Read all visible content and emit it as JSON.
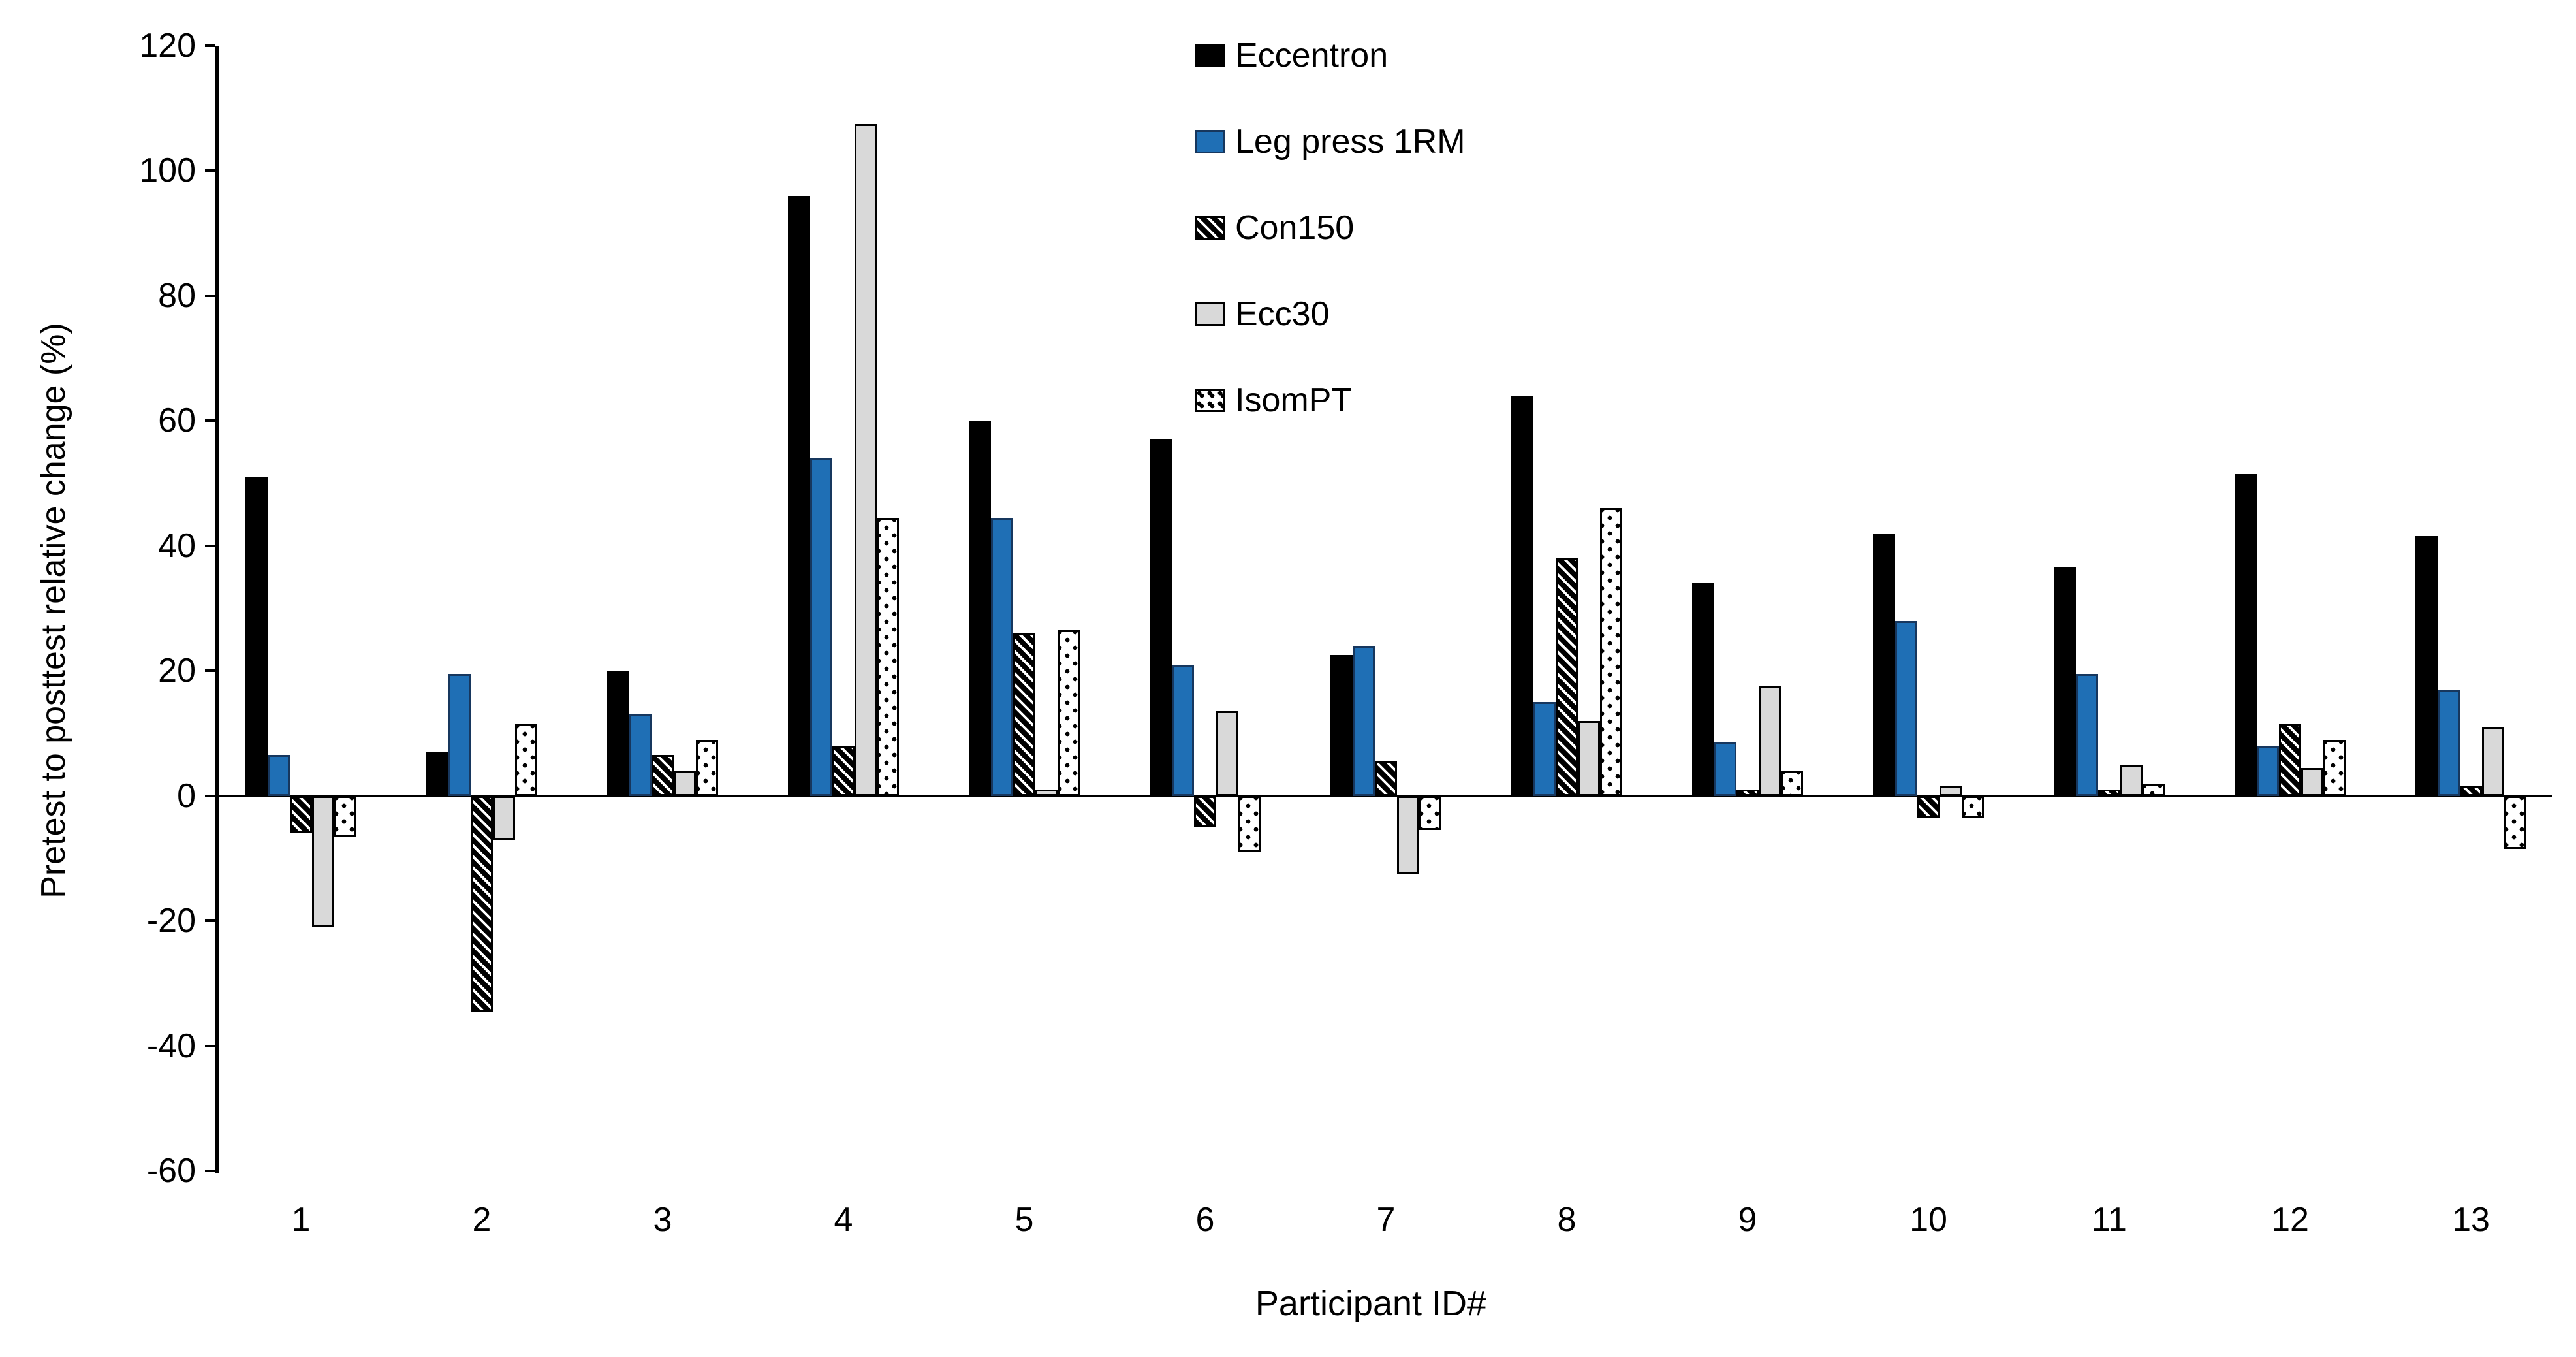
{
  "chart_data": {
    "type": "bar",
    "title": "",
    "xlabel": "Participant ID#",
    "ylabel": "Pretest to posttest relative change (%)",
    "categories": [
      "1",
      "2",
      "3",
      "4",
      "5",
      "6",
      "7",
      "8",
      "9",
      "10",
      "11",
      "12",
      "13"
    ],
    "y_ticks": [
      120,
      100,
      80,
      60,
      40,
      20,
      0,
      -20,
      -40,
      -60
    ],
    "ylim": [
      -60,
      120
    ],
    "grid": false,
    "legend_position": "top-center",
    "colors": {
      "eccentron": "#000000",
      "leg_press": "#1F6FB5",
      "leg_press_border": "#17375E",
      "ecc30": "#D9D9D9",
      "axis": "#000000"
    },
    "series": [
      {
        "name": "Eccentron",
        "pattern": "solid",
        "color": "#000000",
        "values": [
          51,
          7,
          20,
          96,
          60,
          57,
          22.5,
          64,
          34,
          42,
          36.5,
          51.5,
          41.5
        ]
      },
      {
        "name": "Leg press 1RM",
        "pattern": "solid",
        "color": "#1F6FB5",
        "values": [
          6.5,
          19.5,
          13,
          54,
          44.5,
          21,
          24,
          15,
          8.5,
          28,
          19.5,
          8,
          17
        ]
      },
      {
        "name": "Con150",
        "pattern": "diag",
        "color": "#000000",
        "values": [
          -6,
          -34.5,
          6.5,
          8,
          26,
          -5,
          5.5,
          38,
          1,
          -3.5,
          1,
          11.5,
          1.5
        ]
      },
      {
        "name": "Ecc30",
        "pattern": "solid",
        "color": "#D9D9D9",
        "values": [
          -21,
          -7,
          4,
          107.5,
          1,
          13.5,
          -12.5,
          12,
          17.5,
          1.5,
          5,
          4.5,
          11
        ]
      },
      {
        "name": "IsomPT",
        "pattern": "dots",
        "color": "#FFFFFF",
        "values": [
          -6.5,
          11.5,
          9,
          44.5,
          26.5,
          -9,
          -5.5,
          46,
          4,
          -3.5,
          2,
          9,
          -8.5
        ]
      }
    ]
  }
}
